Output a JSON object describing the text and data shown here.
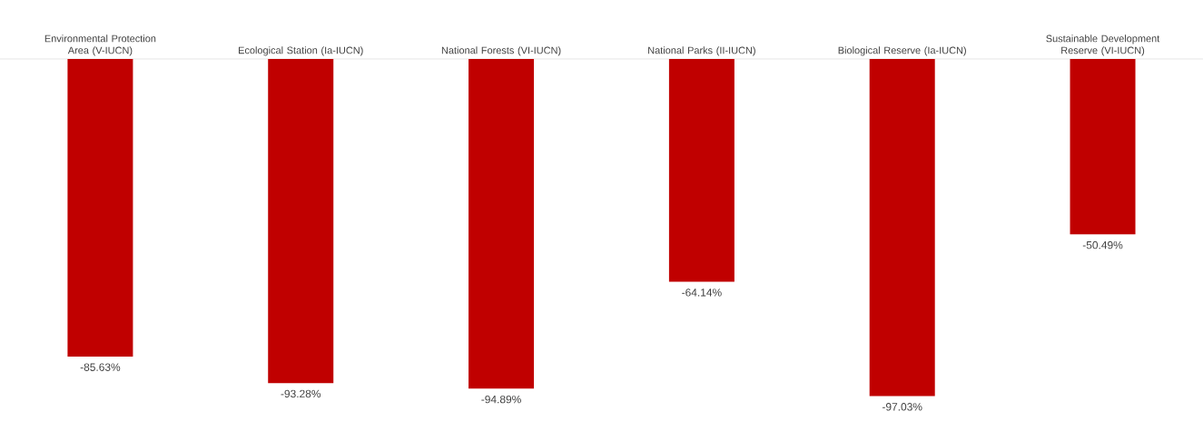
{
  "chart_data": {
    "type": "bar",
    "categories": [
      "Environmental Protection Area (V-IUCN)",
      "Ecological Station (Ia-IUCN)",
      "National Forests (VI-IUCN)",
      "National Parks (II-IUCN)",
      "Biological Reserve (Ia-IUCN)",
      "Sustainable Development Reserve (VI-IUCN)"
    ],
    "values": [
      -85.63,
      -93.28,
      -94.89,
      -64.14,
      -97.03,
      -50.49
    ],
    "value_labels": [
      "-85.63%",
      "-93.28%",
      "-94.89%",
      "-64.14%",
      "-97.03%",
      "-50.49%"
    ],
    "color": "#c00000"
  }
}
